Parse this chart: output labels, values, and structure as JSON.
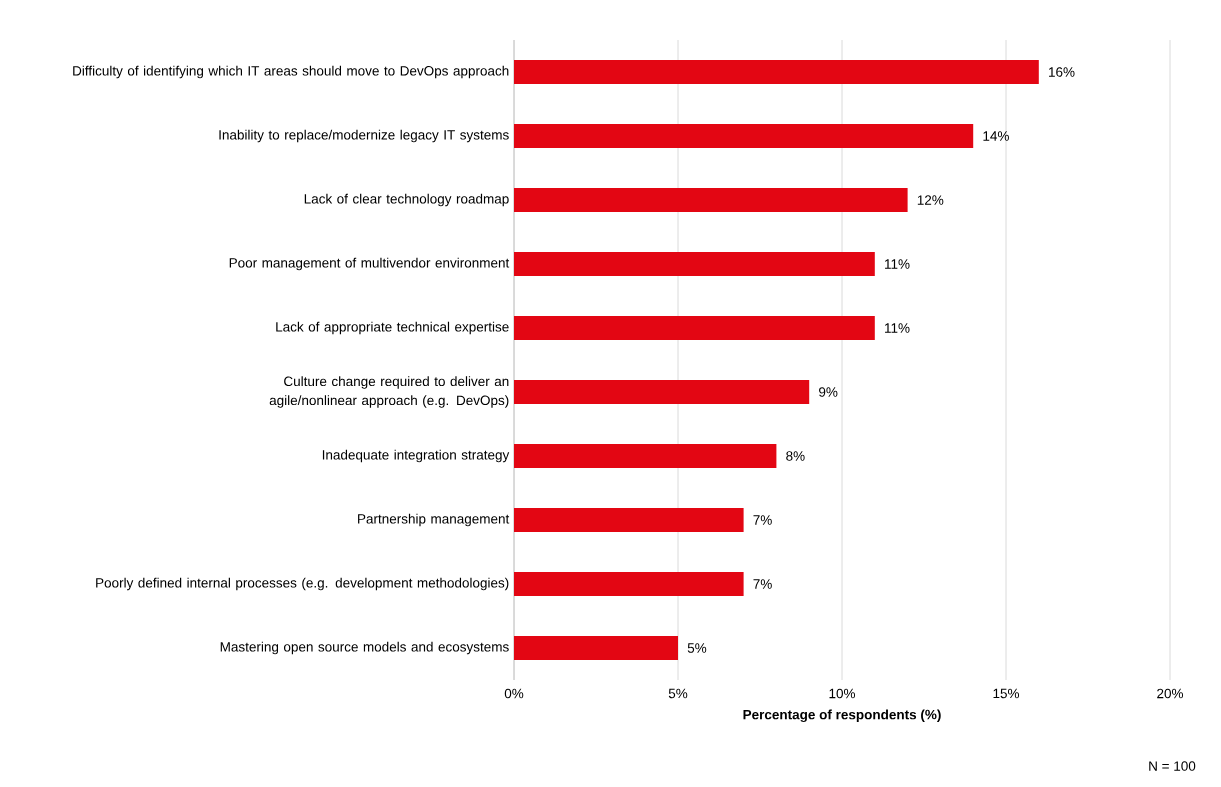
{
  "chart_data": {
    "type": "bar",
    "orientation": "horizontal",
    "xlabel": "Percentage of respondents (%)",
    "categories": [
      "Difficulty of identifying which IT areas should move to DevOps approach",
      "Inability to replace/modernize legacy IT systems",
      "Lack of clear technology roadmap",
      "Poor management of multivendor environment",
      "Lack of appropriate technical expertise",
      "Culture change required to deliver an agile/nonlinear approach (e.g. DevOps)",
      "Inadequate integration strategy",
      "Partnership management",
      "Poorly defined internal processes (e.g. development methodologies)",
      "Mastering open source models and ecosystems"
    ],
    "values": [
      16,
      14,
      12,
      11,
      11,
      9,
      8,
      7,
      7,
      5
    ],
    "value_labels": [
      "16%",
      "14%",
      "12%",
      "11%",
      "11%",
      "9%",
      "8%",
      "7%",
      "7%",
      "5%"
    ],
    "color": "#e30613",
    "xlim": [
      0,
      20
    ],
    "xticks": [
      {
        "value": 0,
        "label": "0%"
      },
      {
        "value": 5,
        "label": "5%"
      },
      {
        "value": 10,
        "label": "10%"
      },
      {
        "value": 15,
        "label": "15%"
      },
      {
        "value": 20,
        "label": "20%"
      }
    ],
    "grid": "x",
    "annotations": [
      "N = 100"
    ]
  }
}
